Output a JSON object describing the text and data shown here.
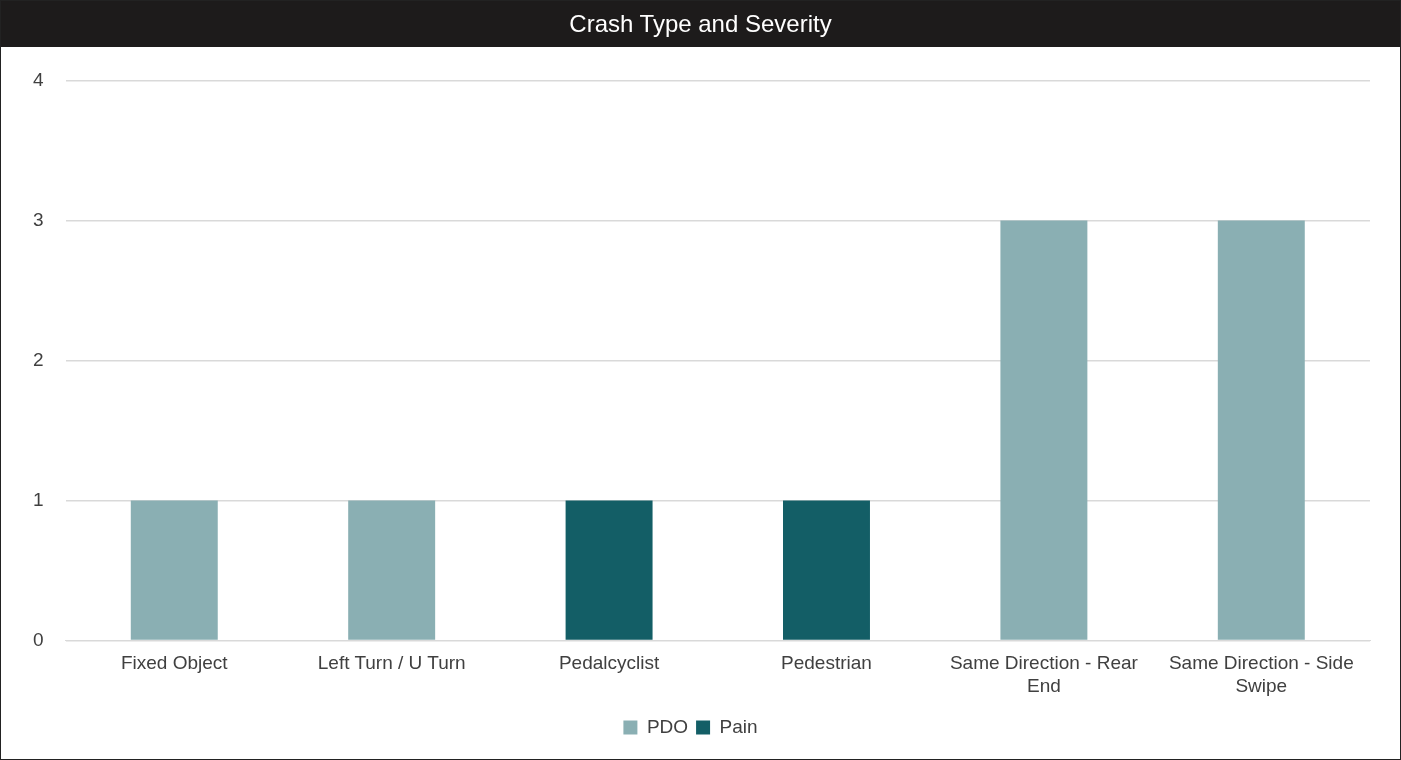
{
  "chart_data": {
    "type": "bar",
    "title": "Crash Type and Severity",
    "categories": [
      "Fixed Object",
      "Left Turn / U Turn",
      "Pedalcyclist",
      "Pedestrian",
      "Same Direction - Rear End",
      "Same Direction - Side Swipe"
    ],
    "series": [
      {
        "name": "PDO",
        "color": "#8aafb3",
        "values": [
          1,
          1,
          null,
          null,
          3,
          3
        ]
      },
      {
        "name": "Pain",
        "color": "#135e66",
        "values": [
          null,
          null,
          1,
          1,
          null,
          null
        ]
      }
    ],
    "stacked": true,
    "ylim": [
      0,
      4
    ],
    "yticks": [
      0,
      1,
      2,
      3,
      4
    ],
    "grid": "y",
    "legend": "bottom"
  }
}
